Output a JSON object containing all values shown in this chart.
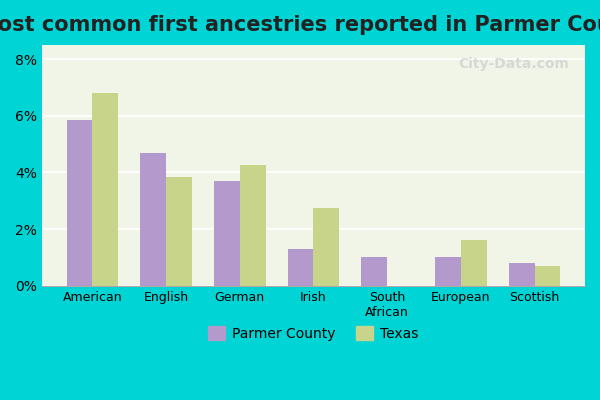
{
  "title": "Most common first ancestries reported in Parmer County",
  "categories": [
    "American",
    "English",
    "German",
    "Irish",
    "South\nAfrican",
    "European",
    "Scottish"
  ],
  "parmer_county": [
    5.85,
    4.7,
    3.7,
    1.3,
    1.0,
    1.0,
    0.8
  ],
  "texas": [
    6.8,
    3.85,
    4.25,
    2.75,
    0.0,
    1.6,
    0.7
  ],
  "parmer_color": "#b399cc",
  "texas_color": "#c8d48a",
  "bar_width": 0.35,
  "ylim": [
    0,
    8.5
  ],
  "yticks": [
    0,
    2,
    4,
    6,
    8
  ],
  "ytick_labels": [
    "0%",
    "2%",
    "4%",
    "6%",
    "8%"
  ],
  "legend_labels": [
    "Parmer County",
    "Texas"
  ],
  "background_outer": "#00d4d4",
  "background_plot": "#f0f5e8",
  "title_fontsize": 15,
  "watermark": "City-Data.com"
}
